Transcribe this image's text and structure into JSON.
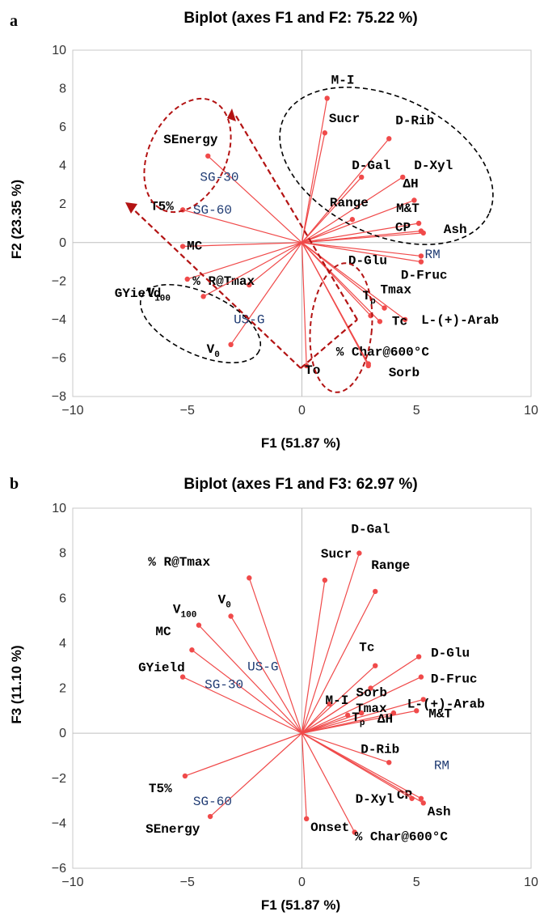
{
  "chart_data": [
    {
      "panel": "a",
      "type": "scatter",
      "title": "Biplot (axes F1 and F2: 75.22 %)",
      "xlabel": "F1 (51.87 %)",
      "ylabel": "F2 (23.35 %)",
      "xlim": [
        -10,
        10
      ],
      "ylim": [
        -8,
        10
      ],
      "xticks": [
        "−10",
        "−5",
        "0",
        "5",
        "10"
      ],
      "yticks": [
        "−8",
        "−6",
        "−4",
        "−2",
        "0",
        "2",
        "4",
        "6",
        "8",
        "10"
      ],
      "variables": [
        {
          "label": "M-I",
          "x": 1.1,
          "y": 7.5
        },
        {
          "label": "Sucr",
          "x": 1.0,
          "y": 5.7
        },
        {
          "label": "D-Rib",
          "x": 3.8,
          "y": 5.4
        },
        {
          "label": "D-Gal",
          "x": 2.6,
          "y": 3.4
        },
        {
          "label": "D-Xyl",
          "x": 4.4,
          "y": 3.4
        },
        {
          "label": "ΔH",
          "x": 4.9,
          "y": 2.2
        },
        {
          "label": "Range",
          "x": 2.2,
          "y": 1.2
        },
        {
          "label": "M&T",
          "x": 5.1,
          "y": 1.0
        },
        {
          "label": "CP",
          "x": 5.2,
          "y": 0.6
        },
        {
          "label": "Ash",
          "x": 5.3,
          "y": 0.5
        },
        {
          "label": "D-Glu",
          "x": 5.2,
          "y": -0.7
        },
        {
          "label": "D-Fruc",
          "x": 5.2,
          "y": -1.0
        },
        {
          "label": "Tmax",
          "x": 3.6,
          "y": -3.4
        },
        {
          "label": "L-(+)-Arab",
          "x": 4.5,
          "y": -4.0
        },
        {
          "label": "Tp",
          "x": 3.0,
          "y": -3.8
        },
        {
          "label": "Tc",
          "x": 3.4,
          "y": -4.1
        },
        {
          "label": "% Char@600°C",
          "x": 2.9,
          "y": -6.3
        },
        {
          "label": "Sorb",
          "x": 2.9,
          "y": -6.4
        },
        {
          "label": "To",
          "x": 0.2,
          "y": -6.4
        },
        {
          "label": "SEnergy",
          "x": -4.1,
          "y": 4.5
        },
        {
          "label": "T5%",
          "x": -5.2,
          "y": 1.7
        },
        {
          "label": "MC",
          "x": -5.2,
          "y": -0.2
        },
        {
          "label": "GYield",
          "x": -5.0,
          "y": -1.9
        },
        {
          "label": "% R@Tmax",
          "x": -2.3,
          "y": -2.2
        },
        {
          "label": "V100",
          "x": -4.3,
          "y": -2.8
        },
        {
          "label": "V0",
          "x": -3.1,
          "y": -5.3
        }
      ],
      "observations": [
        {
          "label": "SG-30",
          "x": -3.6,
          "y": 3.2
        },
        {
          "label": "SG-60",
          "x": -3.9,
          "y": 1.5
        },
        {
          "label": "US-G",
          "x": -2.3,
          "y": -4.2
        },
        {
          "label": "RM",
          "x": 5.7,
          "y": -0.8
        }
      ],
      "groupings": [
        "black dashed ellipse (upper right)",
        "black dashed ellipse (lower left)",
        "red dashed ellipse (SEnergy/T5%)",
        "red dashed ellipse (Tp/Tc/Sorb/To)",
        "red dashed arrows"
      ]
    },
    {
      "panel": "b",
      "type": "scatter",
      "title": "Biplot (axes F1 and F3: 62.97 %)",
      "xlabel": "F1 (51.87 %)",
      "ylabel": "F3 (11.10 %)",
      "xlim": [
        -10,
        10
      ],
      "ylim": [
        -6,
        10
      ],
      "xticks": [
        "−10",
        "−5",
        "0",
        "5",
        "10"
      ],
      "yticks": [
        "−6",
        "−4",
        "−2",
        "0",
        "2",
        "4",
        "6",
        "8",
        "10"
      ],
      "variables": [
        {
          "label": "D-Gal",
          "x": 2.5,
          "y": 8.0
        },
        {
          "label": "Sucr",
          "x": 1.0,
          "y": 6.8
        },
        {
          "label": "Range",
          "x": 3.2,
          "y": 6.3
        },
        {
          "label": "D-Glu",
          "x": 5.1,
          "y": 3.4
        },
        {
          "label": "D-Fruc",
          "x": 5.2,
          "y": 2.5
        },
        {
          "label": "Tc",
          "x": 3.2,
          "y": 3.0
        },
        {
          "label": "Sorb",
          "x": 3.0,
          "y": 2.0
        },
        {
          "label": "M-I",
          "x": 1.2,
          "y": 1.3
        },
        {
          "label": "L-(+)-Arab",
          "x": 5.3,
          "y": 1.5
        },
        {
          "label": "Tmax",
          "x": 2.0,
          "y": 0.8
        },
        {
          "label": "M&T",
          "x": 5.0,
          "y": 1.0
        },
        {
          "label": "Tp",
          "x": 2.6,
          "y": 0.9
        },
        {
          "label": "ΔH",
          "x": 4.0,
          "y": 0.9
        },
        {
          "label": "D-Rib",
          "x": 3.8,
          "y": -1.3
        },
        {
          "label": "CP",
          "x": 5.2,
          "y": -2.9
        },
        {
          "label": "Ash",
          "x": 5.3,
          "y": -3.1
        },
        {
          "label": "D-Xyl",
          "x": 4.8,
          "y": -2.9
        },
        {
          "label": "Onset",
          "x": 0.2,
          "y": -3.8
        },
        {
          "label": "% Char@600°C",
          "x": 2.3,
          "y": -4.4
        },
        {
          "label": "% R@Tmax",
          "x": -2.3,
          "y": 6.9
        },
        {
          "label": "V100",
          "x": -4.5,
          "y": 4.8
        },
        {
          "label": "V0",
          "x": -3.1,
          "y": 5.2
        },
        {
          "label": "MC",
          "x": -4.8,
          "y": 3.7
        },
        {
          "label": "GYield",
          "x": -5.2,
          "y": 2.5
        },
        {
          "label": "T5%",
          "x": -5.1,
          "y": -1.9
        },
        {
          "label": "SEnergy",
          "x": -4.0,
          "y": -3.7
        }
      ],
      "observations": [
        {
          "label": "US-G",
          "x": -1.7,
          "y": 2.8
        },
        {
          "label": "SG-30",
          "x": -3.4,
          "y": 2.0
        },
        {
          "label": "SG-60",
          "x": -3.9,
          "y": -3.2
        },
        {
          "label": "RM",
          "x": 6.1,
          "y": -1.6
        }
      ]
    }
  ],
  "panels": {
    "a": {
      "letter": "a",
      "title": "Biplot (axes F1 and F2: 75.22 %)",
      "xlabel": "F1 (51.87 %)",
      "ylabel": "F2 (23.35 %)"
    },
    "b": {
      "letter": "b",
      "title": "Biplot (axes F1 and F3: 62.97 %)",
      "xlabel": "F1 (51.87 %)",
      "ylabel": "F3 (11.10 %)"
    }
  }
}
